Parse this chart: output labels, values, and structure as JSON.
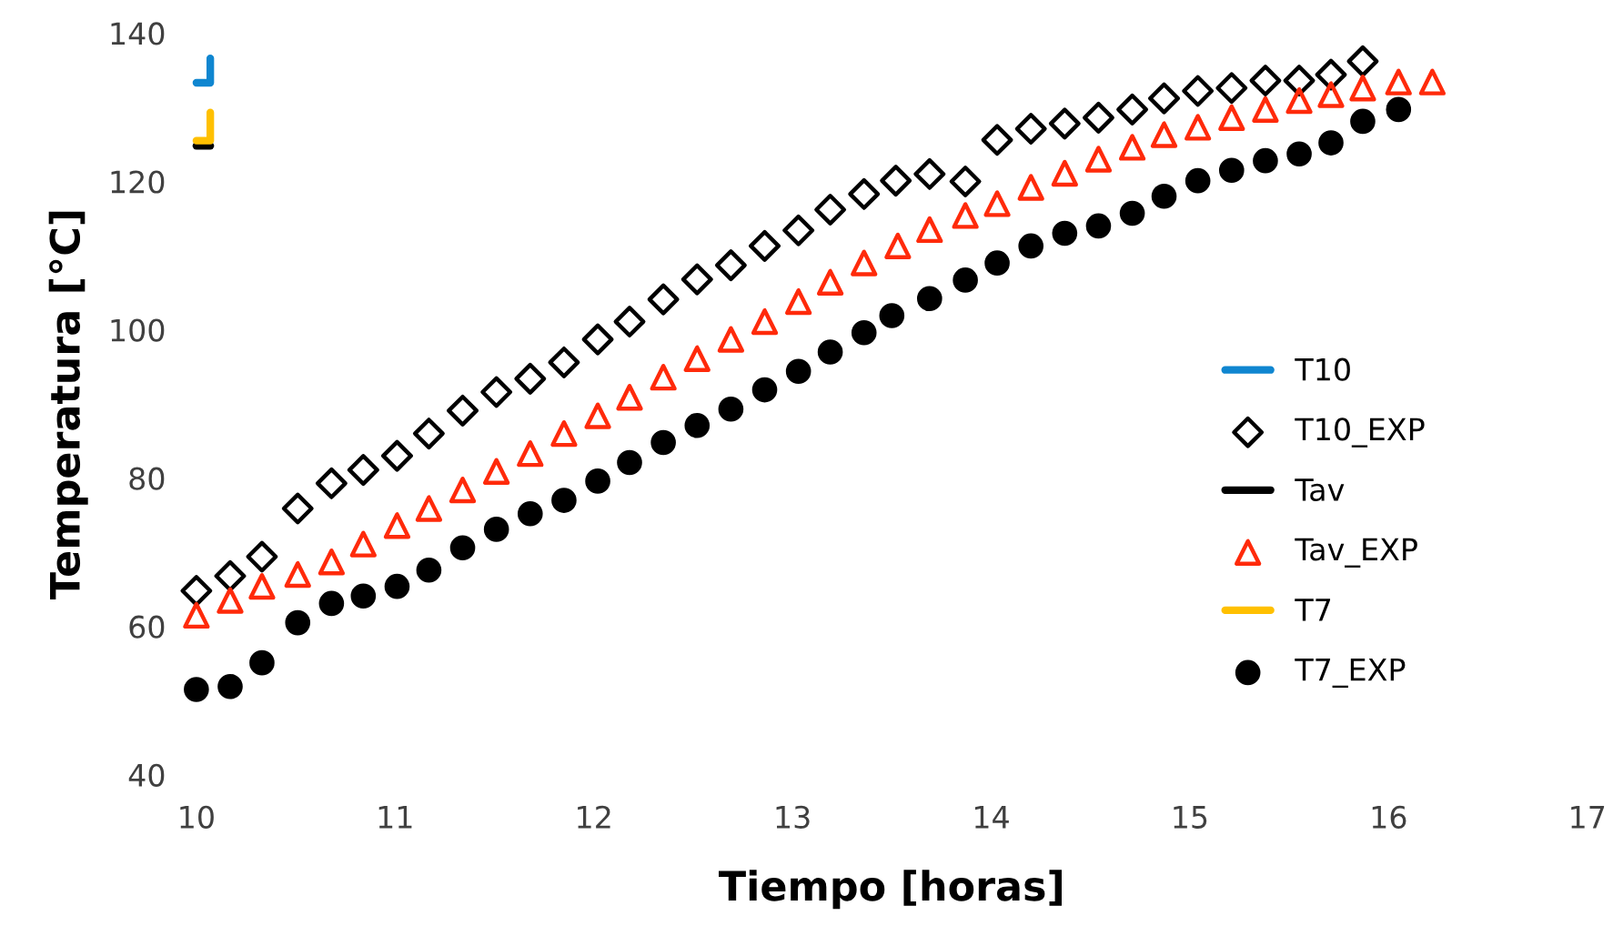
{
  "chart_data": {
    "type": "scatter",
    "xlabel": "Tiempo [horas]",
    "ylabel": "Temperatura [°C]",
    "xlim": [
      10,
      17
    ],
    "xticks": [
      10,
      11,
      12,
      13,
      14,
      15,
      16,
      17
    ],
    "ylim": [
      40,
      140
    ],
    "yticks": [
      40,
      60,
      80,
      100,
      120,
      140
    ],
    "grid": false,
    "legend": "right",
    "series": [
      {
        "name": "T10",
        "type": "line",
        "color": "#0f86d0",
        "line_style": "solid",
        "x": [
          10.0,
          10.07,
          10.07
        ],
        "values": [
          133.3,
          133.3,
          136.6
        ]
      },
      {
        "name": "T10_EXP",
        "marker": "diamond",
        "color": "#000000",
        "x": [
          10.0,
          10.17,
          10.33,
          10.51,
          10.68,
          10.84,
          11.01,
          11.17,
          11.34,
          11.51,
          11.68,
          11.85,
          12.02,
          12.18,
          12.35,
          12.52,
          12.69,
          12.86,
          13.03,
          13.19,
          13.36,
          13.52,
          13.69,
          13.87,
          14.03,
          14.2,
          14.37,
          14.54,
          14.71,
          14.87,
          15.04,
          15.21,
          15.38,
          15.55,
          15.71,
          15.87
        ],
        "values": [
          64.8,
          66.8,
          69.4,
          75.9,
          79.3,
          81.1,
          83.0,
          86.0,
          89.1,
          91.6,
          93.4,
          95.6,
          98.7,
          101.1,
          104.1,
          106.8,
          108.7,
          111.3,
          113.4,
          116.2,
          118.3,
          120.1,
          121.0,
          120.0,
          125.6,
          127.1,
          127.8,
          128.6,
          129.7,
          131.2,
          132.2,
          132.6,
          133.6,
          133.6,
          134.4,
          136.2
        ]
      },
      {
        "name": "Tav",
        "type": "line",
        "color": "#000000",
        "line_style": "solid",
        "x": [
          10.0,
          10.07
        ],
        "values": [
          124.8,
          124.8
        ]
      },
      {
        "name": "Tav_EXP",
        "marker": "triangle",
        "color": "#ff2a0a",
        "x": [
          10.0,
          10.17,
          10.33,
          10.51,
          10.68,
          10.84,
          11.01,
          11.17,
          11.34,
          11.51,
          11.68,
          11.85,
          12.02,
          12.18,
          12.35,
          12.52,
          12.69,
          12.86,
          13.03,
          13.19,
          13.36,
          13.53,
          13.69,
          13.87,
          14.03,
          14.2,
          14.37,
          14.54,
          14.71,
          14.87,
          15.04,
          15.21,
          15.38,
          15.55,
          15.71,
          15.87,
          16.05,
          16.22
        ],
        "values": [
          61.5,
          63.5,
          65.4,
          67.0,
          68.7,
          71.1,
          73.6,
          75.9,
          78.4,
          80.9,
          83.3,
          86.0,
          88.4,
          90.9,
          93.6,
          96.1,
          98.7,
          101.1,
          103.8,
          106.4,
          109.0,
          111.3,
          113.5,
          115.4,
          117.0,
          119.2,
          121.1,
          123.0,
          124.6,
          126.3,
          127.3,
          128.6,
          129.7,
          130.9,
          131.7,
          132.6,
          133.4,
          133.4
        ]
      },
      {
        "name": "T7",
        "type": "line",
        "color": "#ffc000",
        "line_style": "solid",
        "x": [
          10.0,
          10.07,
          10.07
        ],
        "values": [
          125.5,
          125.5,
          129.3
        ]
      },
      {
        "name": "T7_EXP",
        "marker": "circle",
        "color": "#000000",
        "x": [
          10.0,
          10.17,
          10.33,
          10.51,
          10.68,
          10.84,
          11.01,
          11.17,
          11.34,
          11.51,
          11.68,
          11.85,
          12.02,
          12.18,
          12.35,
          12.52,
          12.69,
          12.86,
          13.03,
          13.19,
          13.36,
          13.5,
          13.69,
          13.87,
          14.03,
          14.2,
          14.37,
          14.54,
          14.71,
          14.87,
          15.04,
          15.21,
          15.38,
          15.55,
          15.71,
          15.87,
          16.05
        ],
        "values": [
          51.5,
          51.9,
          55.1,
          60.5,
          63.1,
          64.1,
          65.4,
          67.6,
          70.6,
          73.1,
          75.2,
          77.0,
          79.6,
          82.1,
          84.8,
          87.1,
          89.3,
          91.9,
          94.4,
          97.0,
          99.6,
          101.9,
          104.2,
          106.7,
          109.0,
          111.3,
          113.0,
          114.0,
          115.7,
          118.0,
          120.1,
          121.5,
          122.8,
          123.7,
          125.2,
          128.1,
          129.7
        ]
      }
    ]
  }
}
